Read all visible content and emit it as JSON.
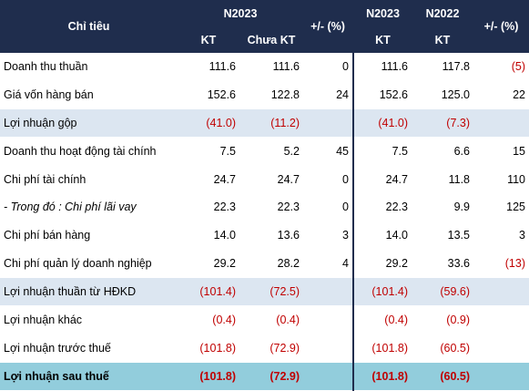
{
  "header": {
    "col_label": "Chỉ tiêu",
    "group1_period": "N2023",
    "group1_kt": "KT",
    "group1_unaudited": "Chưa KT",
    "group1_change": "+/- (%)",
    "group2_period1": "N2023",
    "group2_period2": "N2022",
    "group2_kt1": "KT",
    "group2_kt2": "KT",
    "group2_change": "+/- (%)"
  },
  "rows": [
    {
      "label": "Doanh thu thuần",
      "a": "111.6",
      "b": "111.6",
      "c": "0",
      "d": "111.6",
      "e": "117.8",
      "f": "(5)"
    },
    {
      "label": "Giá vốn hàng bán",
      "a": "152.6",
      "b": "122.8",
      "c": "24",
      "d": "152.6",
      "e": "125.0",
      "f": "22"
    },
    {
      "label": "Lợi nhuận gộp",
      "a": "(41.0)",
      "b": "(11.2)",
      "c": "",
      "d": "(41.0)",
      "e": "(7.3)",
      "f": ""
    },
    {
      "label": "Doanh thu hoạt động tài chính",
      "a": "7.5",
      "b": "5.2",
      "c": "45",
      "d": "7.5",
      "e": "6.6",
      "f": "15"
    },
    {
      "label": "Chi phí tài chính",
      "a": "24.7",
      "b": "24.7",
      "c": "0",
      "d": "24.7",
      "e": "11.8",
      "f": "110"
    },
    {
      "label": "- Trong đó : Chi phí lãi vay",
      "a": "22.3",
      "b": "22.3",
      "c": "0",
      "d": "22.3",
      "e": "9.9",
      "f": "125"
    },
    {
      "label": "Chi phí bán hàng",
      "a": "14.0",
      "b": "13.6",
      "c": "3",
      "d": "14.0",
      "e": "13.5",
      "f": "3"
    },
    {
      "label": "Chi phí quản lý doanh nghiệp",
      "a": "29.2",
      "b": "28.2",
      "c": "4",
      "d": "29.2",
      "e": "33.6",
      "f": "(13)"
    },
    {
      "label": "Lợi nhuận thuần từ HĐKD",
      "a": "(101.4)",
      "b": "(72.5)",
      "c": "",
      "d": "(101.4)",
      "e": "(59.6)",
      "f": ""
    },
    {
      "label": "Lợi nhuận khác",
      "a": "(0.4)",
      "b": "(0.4)",
      "c": "",
      "d": "(0.4)",
      "e": "(0.9)",
      "f": ""
    },
    {
      "label": "Lợi nhuận trước thuế",
      "a": "(101.8)",
      "b": "(72.9)",
      "c": "",
      "d": "(101.8)",
      "e": "(60.5)",
      "f": ""
    },
    {
      "label": "Lợi nhuận sau thuế",
      "a": "(101.8)",
      "b": "(72.9)",
      "c": "",
      "d": "(101.8)",
      "e": "(60.5)",
      "f": ""
    }
  ],
  "colors": {
    "header_bg": "#1f2d4d",
    "shade_bg": "#dce6f1",
    "total_bg": "#92cddc",
    "negative": "#c00000"
  }
}
